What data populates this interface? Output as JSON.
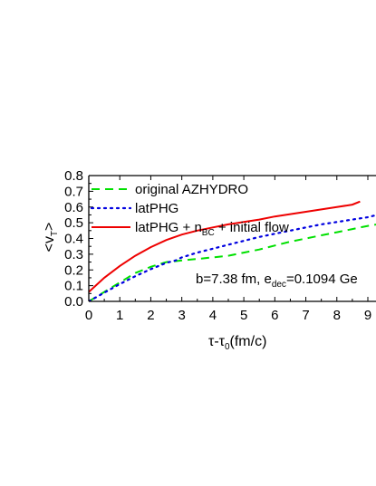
{
  "chart_data": {
    "type": "line",
    "x_axis": {
      "label_main": "τ-τ",
      "label_sub": "0",
      "label_tail": "(fm/c)",
      "range": [
        0,
        9
      ],
      "ticks": [
        "0",
        "1",
        "2",
        "3",
        "4",
        "5",
        "6",
        "7",
        "8",
        "9"
      ]
    },
    "y_axis": {
      "label_main": "<v",
      "label_sub": "T",
      "label_tail": ">",
      "range": [
        0.0,
        0.8
      ],
      "ticks": [
        "0.0",
        "0.1",
        "0.2",
        "0.3",
        "0.4",
        "0.5",
        "0.6",
        "0.7",
        "0.8"
      ]
    },
    "grid": false,
    "legend_position": "top-left",
    "series": [
      {
        "name": "original AZHYDRO",
        "legend_parts": [
          "original AZHYDRO"
        ],
        "color": "#00e000",
        "style": "dashed",
        "x": [
          0,
          0.5,
          1.0,
          1.5,
          2.0,
          2.5,
          3.0,
          3.5,
          4.0,
          4.5,
          5.0,
          5.5,
          6.0,
          6.5,
          7.0,
          7.5,
          8.0,
          8.5,
          9.0,
          9.3
        ],
        "y": [
          0.0,
          0.06,
          0.12,
          0.18,
          0.22,
          0.25,
          0.26,
          0.27,
          0.28,
          0.29,
          0.31,
          0.33,
          0.355,
          0.38,
          0.4,
          0.42,
          0.44,
          0.46,
          0.48,
          0.49
        ]
      },
      {
        "name": "latPHG",
        "legend_parts": [
          "latPHG"
        ],
        "color": "#0000e0",
        "style": "dotted",
        "x": [
          0,
          0.5,
          1.0,
          1.5,
          2.0,
          2.5,
          2.8,
          3.0,
          3.5,
          4.0,
          4.5,
          5.0,
          5.5,
          6.0,
          6.5,
          7.0,
          7.5,
          8.0,
          8.5,
          9.0,
          9.3
        ],
        "y": [
          0.0,
          0.055,
          0.11,
          0.16,
          0.205,
          0.245,
          0.26,
          0.28,
          0.31,
          0.335,
          0.36,
          0.385,
          0.41,
          0.43,
          0.45,
          0.47,
          0.49,
          0.505,
          0.52,
          0.535,
          0.55
        ]
      },
      {
        "name": "latPHG + nBC + initial flow",
        "legend_parts": [
          "latPHG + n",
          "BC",
          " + initial flow"
        ],
        "color": "#ee0000",
        "style": "solid",
        "x": [
          0,
          0.5,
          1.0,
          1.5,
          2.0,
          2.5,
          3.0,
          3.5,
          4.0,
          4.5,
          5.0,
          5.5,
          6.0,
          6.5,
          7.0,
          7.5,
          8.0,
          8.5,
          8.75
        ],
        "y": [
          0.06,
          0.15,
          0.225,
          0.29,
          0.345,
          0.39,
          0.425,
          0.45,
          0.47,
          0.49,
          0.505,
          0.52,
          0.54,
          0.555,
          0.57,
          0.585,
          0.6,
          0.615,
          0.635
        ]
      }
    ],
    "annotation": {
      "part1": "b=7.38 fm, e",
      "sub": "dec",
      "part2": "=0.1094 Ge"
    }
  }
}
